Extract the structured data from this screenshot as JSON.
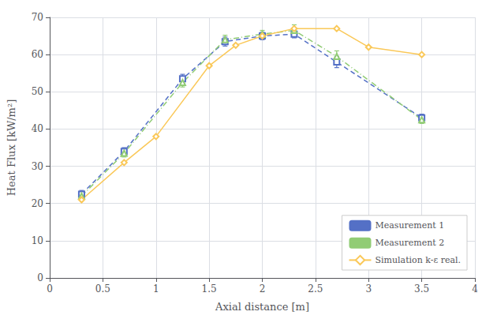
{
  "chart_data": {
    "type": "line",
    "xlabel": "Axial distance [m]",
    "ylabel": "Heat Flux [kW/m²]",
    "xlim": [
      0,
      4
    ],
    "ylim": [
      0,
      70
    ],
    "xticks": [
      0,
      0.5,
      1,
      1.5,
      2,
      2.5,
      3,
      3.5,
      4
    ],
    "yticks": [
      0,
      10,
      20,
      30,
      40,
      50,
      60,
      70
    ],
    "grid": true,
    "legend": "lower right",
    "series": [
      {
        "name": "Measurement 1",
        "x": [
          0.3,
          0.7,
          1.25,
          1.65,
          2.0,
          2.3,
          2.7,
          3.5
        ],
        "values": [
          22.5,
          34.0,
          53.5,
          63.5,
          65.0,
          65.5,
          58.0,
          43.0
        ],
        "error": [
          1.0,
          1.0,
          1.2,
          1.2,
          1.0,
          1.0,
          1.5,
          1.0
        ],
        "marker": "square",
        "line_style": "dashed"
      },
      {
        "name": "Measurement 2",
        "x": [
          0.3,
          0.7,
          1.25,
          1.65,
          2.0,
          2.3,
          2.7,
          3.5
        ],
        "values": [
          22.0,
          33.5,
          52.5,
          64.0,
          65.5,
          66.5,
          59.5,
          42.5
        ],
        "error": [
          1.0,
          1.0,
          1.2,
          1.2,
          1.0,
          1.5,
          1.5,
          1.0
        ],
        "marker": "triangle",
        "line_style": "dashdot"
      },
      {
        "name": "Simulation k-ε real.",
        "x": [
          0.3,
          0.7,
          1.0,
          1.5,
          1.75,
          2.0,
          2.3,
          2.7,
          3.0,
          3.5
        ],
        "values": [
          21.0,
          31.0,
          38.0,
          57.0,
          62.5,
          65.0,
          67.0,
          67.0,
          62.0,
          60.0
        ],
        "marker": "diamond",
        "line_style": "solid"
      }
    ]
  }
}
